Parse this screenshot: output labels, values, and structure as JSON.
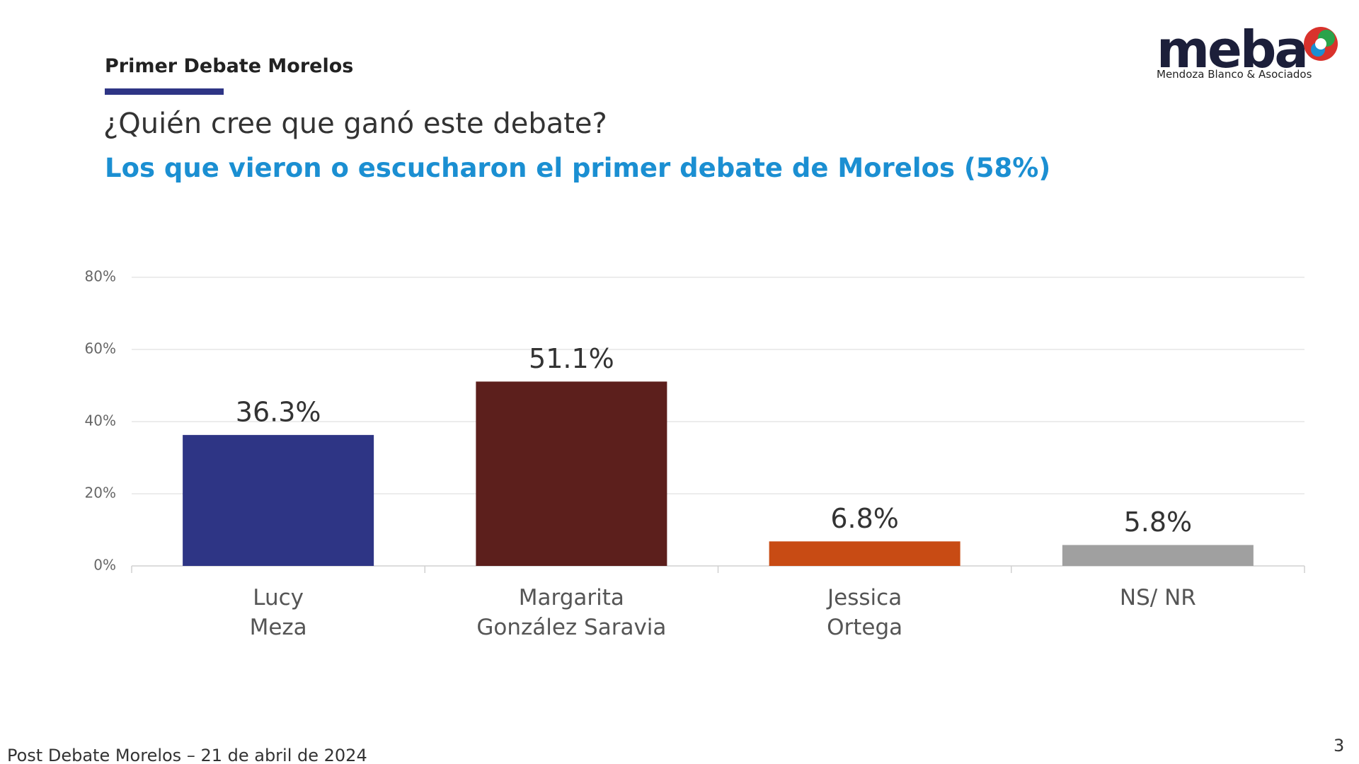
{
  "header": {
    "section": "Primer Debate Morelos",
    "logo": "meba",
    "logo_subtitle": "Mendoza Blanco & Asociados"
  },
  "chart_data": {
    "type": "bar",
    "title": "¿Quién cree que ganó este debate?",
    "subtitle": "Los que vieron o escucharon el primer debate de Morelos (58%)",
    "categories": [
      "Lucy\nMeza",
      "Margarita\nGonzález Saravia",
      "Jessica\nOrtega",
      "NS/ NR"
    ],
    "values": [
      36.3,
      51.1,
      6.8,
      5.8
    ],
    "value_labels": [
      "36.3%",
      "51.1%",
      "6.8%",
      "5.8%"
    ],
    "colors": [
      "#2e3585",
      "#5c1f1c",
      "#c84b14",
      "#a0a0a0"
    ],
    "ylim": [
      0,
      80
    ],
    "yticks": [
      {
        "value": 0,
        "label": "0%"
      },
      {
        "value": 20,
        "label": "20%"
      },
      {
        "value": 40,
        "label": "40%"
      },
      {
        "value": 60,
        "label": "60%"
      },
      {
        "value": 80,
        "label": "80%"
      }
    ],
    "grid": true
  },
  "footer": {
    "text": "Post Debate Morelos – 21 de abril de 2024",
    "page": "3"
  }
}
